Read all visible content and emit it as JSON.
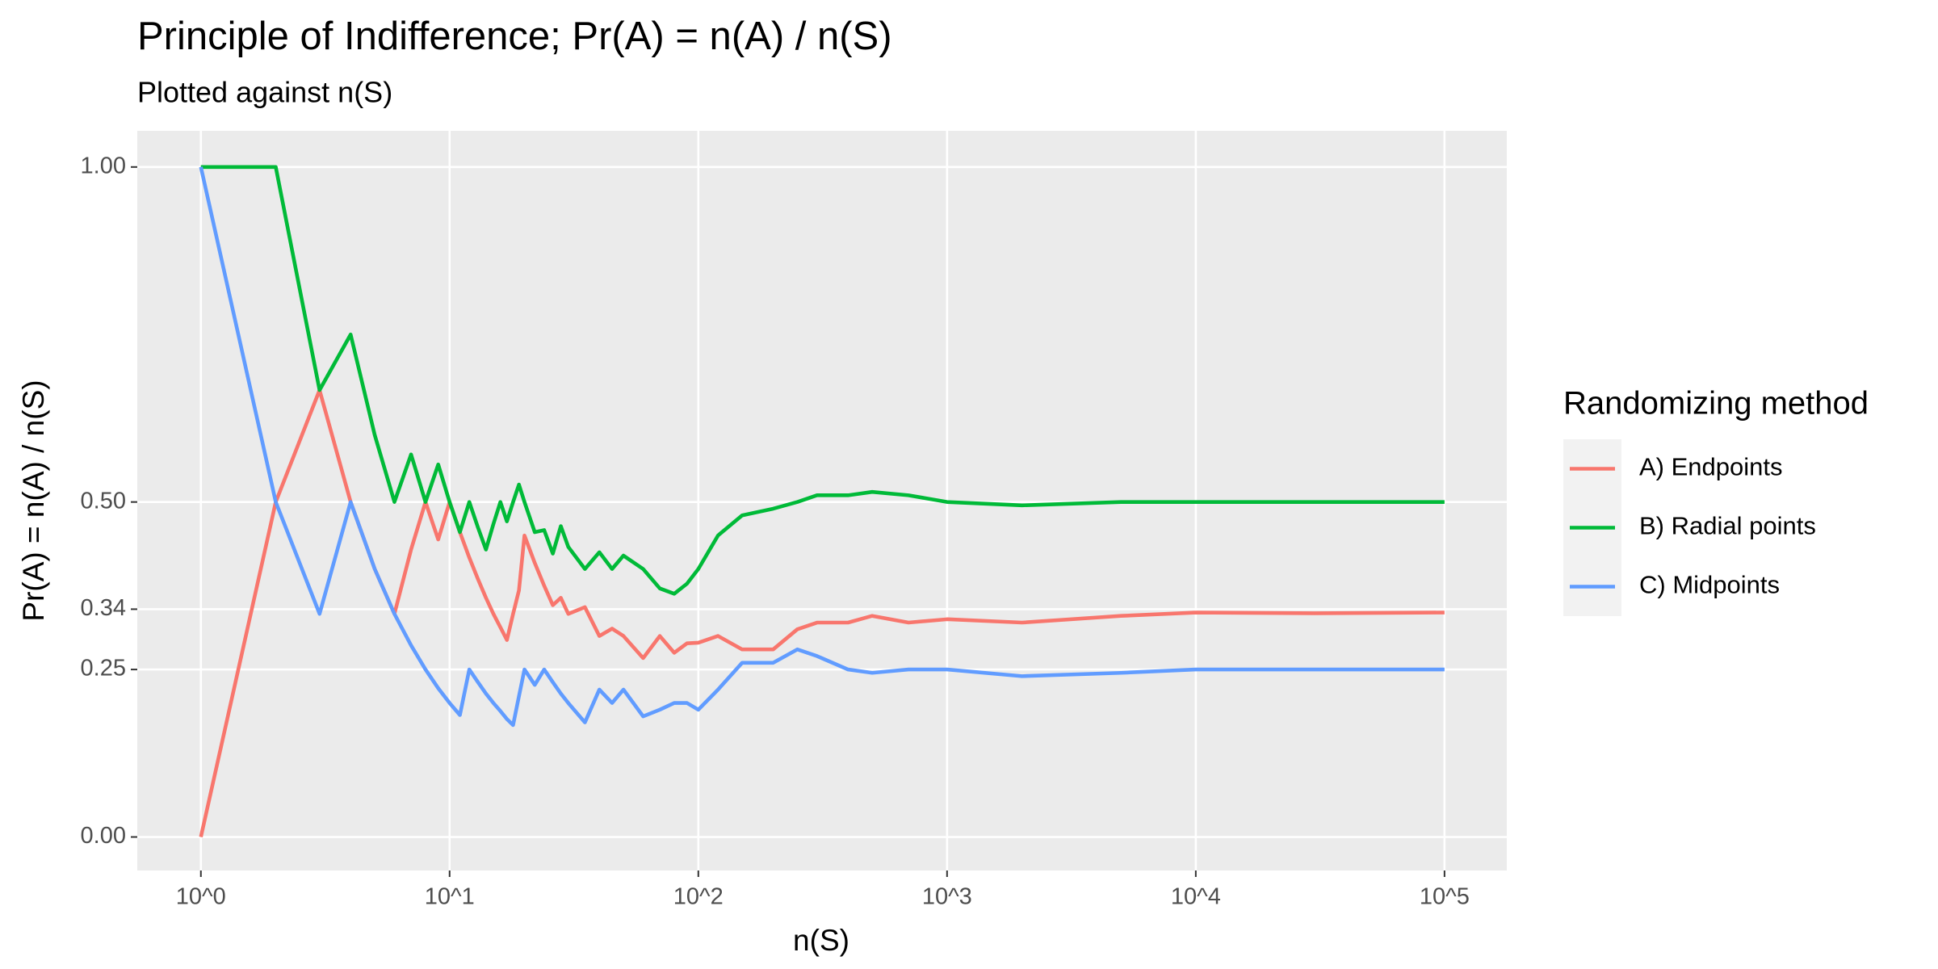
{
  "chart_data": {
    "type": "line",
    "title": "Principle of Indifference; Pr(A) = n(A) / n(S)",
    "subtitle": "Plotted against n(S)",
    "x_label": "n(S)",
    "y_label": "Pr(A) = n(A) / n(S)",
    "legend_title": "Randomizing method",
    "legend_position": "right",
    "x_scale": "log",
    "grid": true,
    "xlim": [
      0.555,
      178000
    ],
    "ylim": [
      -0.05,
      1.054
    ],
    "xticks": [
      {
        "value": 1,
        "label": "10^0"
      },
      {
        "value": 10,
        "label": "10^1"
      },
      {
        "value": 100,
        "label": "10^2"
      },
      {
        "value": 1000,
        "label": "10^3"
      },
      {
        "value": 10000,
        "label": "10^4"
      },
      {
        "value": 100000,
        "label": "10^5"
      }
    ],
    "yticks": [
      {
        "value": 0,
        "label": "0.00"
      },
      0.25,
      0.34,
      {
        "value": 0.5,
        "label": "0.50"
      },
      {
        "value": 1,
        "label": "1.00"
      }
    ],
    "x": [
      1,
      2,
      3,
      4,
      5,
      6,
      7,
      8,
      9,
      10,
      11,
      12,
      13,
      14,
      15,
      16,
      17,
      18,
      19,
      20,
      22,
      24,
      26,
      28,
      30,
      35,
      40,
      45,
      50,
      60,
      70,
      80,
      90,
      100,
      120,
      150,
      200,
      250,
      300,
      400,
      500,
      700,
      1000,
      2000,
      5000,
      10000,
      30000,
      100000
    ],
    "series": [
      {
        "name": "A) Endpoints",
        "color": "#F8766D",
        "values": [
          0,
          0.5,
          0.667,
          0.5,
          0.4,
          0.333,
          0.429,
          0.5,
          0.444,
          0.5,
          0.455,
          0.417,
          0.385,
          0.357,
          0.333,
          0.313,
          0.294,
          0.333,
          0.368,
          0.45,
          0.409,
          0.375,
          0.346,
          0.357,
          0.333,
          0.343,
          0.3,
          0.311,
          0.3,
          0.267,
          0.3,
          0.275,
          0.289,
          0.29,
          0.3,
          0.28,
          0.28,
          0.31,
          0.32,
          0.32,
          0.33,
          0.32,
          0.325,
          0.32,
          0.33,
          0.335,
          0.334,
          0.335
        ]
      },
      {
        "name": "B) Radial points",
        "color": "#00BA38",
        "values": [
          1,
          1,
          0.667,
          0.75,
          0.6,
          0.5,
          0.571,
          0.5,
          0.556,
          0.5,
          0.455,
          0.5,
          0.462,
          0.429,
          0.467,
          0.5,
          0.471,
          0.5,
          0.526,
          0.5,
          0.455,
          0.458,
          0.423,
          0.464,
          0.433,
          0.4,
          0.425,
          0.4,
          0.42,
          0.4,
          0.371,
          0.363,
          0.378,
          0.4,
          0.45,
          0.48,
          0.49,
          0.5,
          0.51,
          0.51,
          0.515,
          0.51,
          0.5,
          0.495,
          0.5,
          0.5,
          0.5,
          0.5
        ]
      },
      {
        "name": "C) Midpoints",
        "color": "#619CFF",
        "values": [
          1,
          0.5,
          0.333,
          0.5,
          0.4,
          0.333,
          0.286,
          0.25,
          0.222,
          0.2,
          0.182,
          0.25,
          0.231,
          0.214,
          0.2,
          0.188,
          0.176,
          0.167,
          0.21,
          0.25,
          0.227,
          0.25,
          0.231,
          0.214,
          0.2,
          0.171,
          0.22,
          0.2,
          0.22,
          0.18,
          0.19,
          0.2,
          0.2,
          0.19,
          0.22,
          0.26,
          0.26,
          0.28,
          0.27,
          0.25,
          0.245,
          0.25,
          0.25,
          0.24,
          0.245,
          0.25,
          0.25,
          0.25
        ]
      }
    ]
  }
}
